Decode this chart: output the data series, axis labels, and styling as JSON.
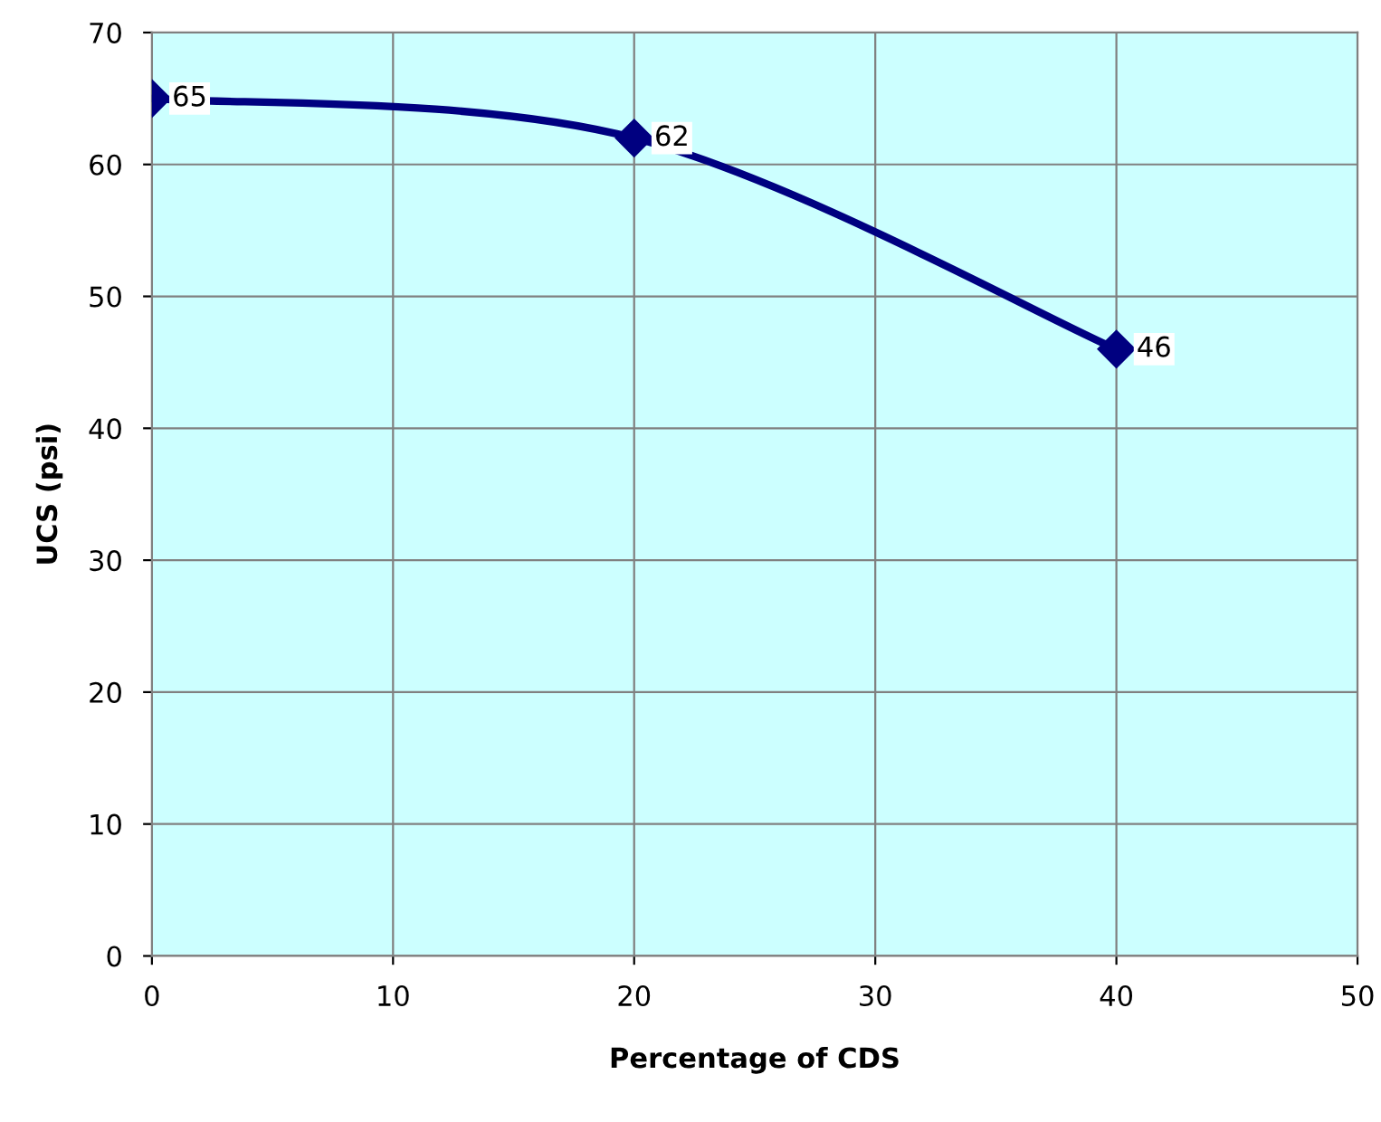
{
  "chart_data": {
    "type": "line",
    "xlabel": "Percentage of CDS",
    "ylabel": "UCS (psi)",
    "x": [
      0,
      20,
      40
    ],
    "series": [
      {
        "color": "#000080",
        "values": [
          65,
          62,
          46
        ]
      }
    ],
    "xlim": [
      0,
      50
    ],
    "xticks": [
      0,
      10,
      20,
      30,
      40,
      50
    ],
    "ylim": [
      0,
      70
    ],
    "yticks": [
      0,
      10,
      20,
      30,
      40,
      50,
      60,
      70
    ],
    "grid": true,
    "marker": "diamond",
    "line_style": "solid",
    "data_labels": true
  }
}
